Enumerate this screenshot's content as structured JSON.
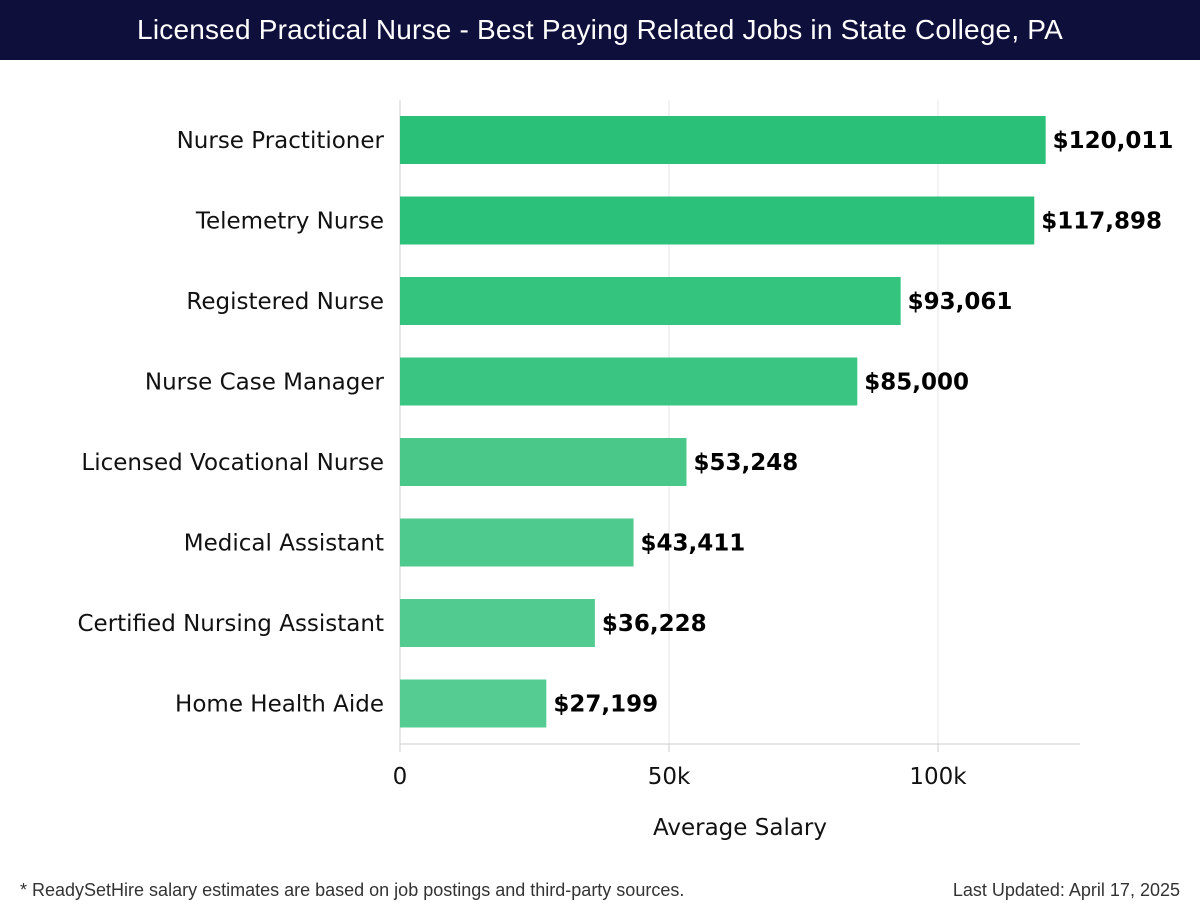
{
  "header": {
    "title": "Licensed Practical Nurse - Best Paying Related Jobs in State College, PA",
    "background": "#0f0f3c"
  },
  "chart_data": {
    "type": "bar",
    "orientation": "horizontal",
    "categories": [
      "Nurse Practitioner",
      "Telemetry Nurse",
      "Registered Nurse",
      "Nurse Case Manager",
      "Licensed Vocational Nurse",
      "Medical Assistant",
      "Certified Nursing Assistant",
      "Home Health Aide"
    ],
    "values": [
      120011,
      117898,
      93061,
      85000,
      53248,
      43411,
      36228,
      27199
    ],
    "value_labels": [
      "$120,011",
      "$117,898",
      "$93,061",
      "$85,000",
      "$53,248",
      "$43,411",
      "$36,228",
      "$27,199"
    ],
    "bar_colors": [
      "#2ac078",
      "#2cc17a",
      "#34c47e",
      "#3bc582",
      "#4ac88a",
      "#4fca8e",
      "#52cb90",
      "#55cc92"
    ],
    "xlabel": "Average Salary",
    "ylabel": "",
    "xlim": [
      0,
      126000
    ],
    "xticks": [
      0,
      50000,
      100000
    ],
    "xtick_labels": [
      "0",
      "50k",
      "100k"
    ],
    "grid": true
  },
  "footer": {
    "note": "* ReadySetHire salary estimates are based on job postings and third-party sources.",
    "updated": "Last Updated: April 17, 2025"
  }
}
